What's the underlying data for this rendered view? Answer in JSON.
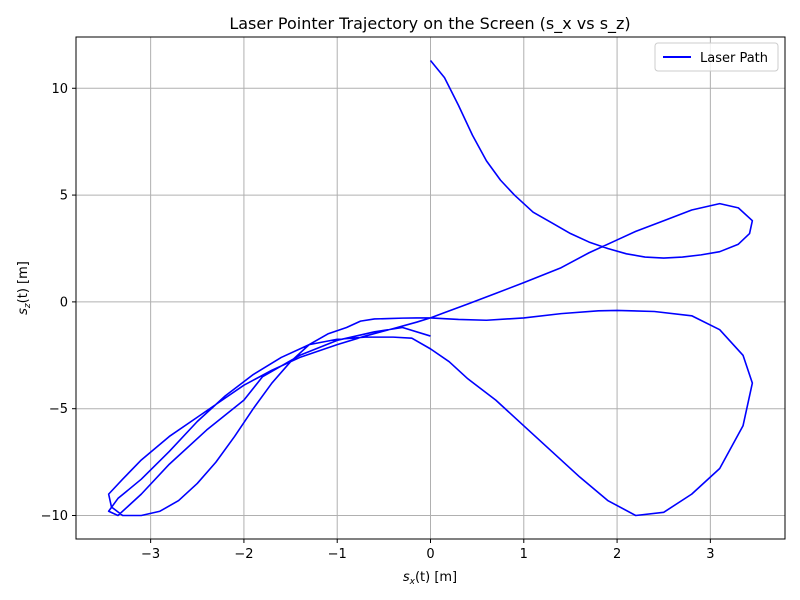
{
  "chart_data": {
    "type": "line",
    "title": "Laser Pointer Trajectory on the Screen (s_x vs s_z)",
    "xlabel": {
      "base": "s",
      "sub": "x",
      "rest": "(t) [m]"
    },
    "ylabel": {
      "base": "s",
      "sub": "z",
      "rest": "(t) [m]"
    },
    "xlim": [
      -3.8,
      3.8
    ],
    "ylim": [
      -11.1,
      12.4
    ],
    "xticks": [
      -3,
      -2,
      -1,
      0,
      1,
      2,
      3
    ],
    "xtick_labels": [
      "−3",
      "−2",
      "−1",
      "0",
      "1",
      "2",
      "3"
    ],
    "yticks": [
      -10,
      -5,
      0,
      5,
      10
    ],
    "ytick_labels": [
      "−10",
      "−5",
      "0",
      "5",
      "10"
    ],
    "grid": true,
    "legend_position": "top-right",
    "series": [
      {
        "name": "Laser Path",
        "color": "#0000ff",
        "x": [
          0.0,
          0.15,
          0.3,
          0.45,
          0.6,
          0.75,
          0.9,
          1.1,
          1.3,
          1.5,
          1.7,
          1.9,
          2.1,
          2.3,
          2.5,
          2.7,
          2.9,
          3.1,
          3.3,
          3.42,
          3.45,
          3.3,
          3.1,
          2.8,
          2.5,
          2.2,
          2.0,
          1.7,
          1.4,
          1.0,
          0.7,
          0.4,
          0.15,
          0.0,
          -0.15,
          -0.4,
          -0.7,
          -1.0,
          -1.4,
          -1.7,
          -2.0,
          -2.2,
          -2.5,
          -2.8,
          -3.1,
          -3.3,
          -3.45,
          -3.42,
          -3.3,
          -3.1,
          -2.9,
          -2.7,
          -2.5,
          -2.3,
          -2.1,
          -1.9,
          -1.7,
          -1.5,
          -1.3,
          -1.1,
          -0.9,
          -0.75,
          -0.6,
          -0.45,
          -0.3,
          -0.15,
          0.0,
          0.3,
          0.6,
          1.0,
          1.4,
          1.8,
          2.0,
          2.4,
          2.8,
          3.1,
          3.35,
          3.45,
          3.35,
          3.1,
          2.8,
          2.5,
          2.2,
          1.9,
          1.6,
          1.3,
          1.0,
          0.7,
          0.4,
          0.2,
          0.0,
          -0.2,
          -0.4,
          -0.7,
          -1.0,
          -1.3,
          -1.6,
          -1.9,
          -2.2,
          -2.5,
          -2.8,
          -3.1,
          -3.35,
          -3.45,
          -3.35,
          -3.1,
          -2.8,
          -2.4,
          -2.0,
          -1.8,
          -1.4,
          -1.0,
          -0.6,
          -0.3,
          0.0
        ],
        "y": [
          11.3,
          10.5,
          9.2,
          7.8,
          6.6,
          5.7,
          5.0,
          4.2,
          3.7,
          3.2,
          2.8,
          2.5,
          2.25,
          2.1,
          2.05,
          2.1,
          2.2,
          2.35,
          2.7,
          3.2,
          3.8,
          4.4,
          4.6,
          4.3,
          3.8,
          3.3,
          2.9,
          2.3,
          1.6,
          0.9,
          0.4,
          -0.1,
          -0.5,
          -0.75,
          -0.95,
          -1.25,
          -1.6,
          -2.0,
          -2.6,
          -3.2,
          -3.9,
          -4.5,
          -5.4,
          -6.3,
          -7.4,
          -8.3,
          -9.0,
          -9.6,
          -10.0,
          -10.0,
          -9.8,
          -9.3,
          -8.5,
          -7.5,
          -6.3,
          -5.0,
          -3.8,
          -2.8,
          -2.0,
          -1.5,
          -1.2,
          -0.9,
          -0.8,
          -0.78,
          -0.76,
          -0.75,
          -0.75,
          -0.82,
          -0.86,
          -0.75,
          -0.55,
          -0.42,
          -0.4,
          -0.45,
          -0.65,
          -1.3,
          -2.5,
          -3.8,
          -5.8,
          -7.8,
          -9.0,
          -9.85,
          -10.0,
          -9.3,
          -8.2,
          -7.0,
          -5.8,
          -4.6,
          -3.6,
          -2.8,
          -2.2,
          -1.7,
          -1.65,
          -1.65,
          -1.75,
          -2.0,
          -2.6,
          -3.4,
          -4.4,
          -5.6,
          -7.0,
          -8.3,
          -9.2,
          -9.8,
          -10.0,
          -9.0,
          -7.6,
          -6.0,
          -4.6,
          -3.5,
          -2.5,
          -1.8,
          -1.4,
          -1.2,
          -1.6
        ],
        "note": ""
      }
    ]
  }
}
